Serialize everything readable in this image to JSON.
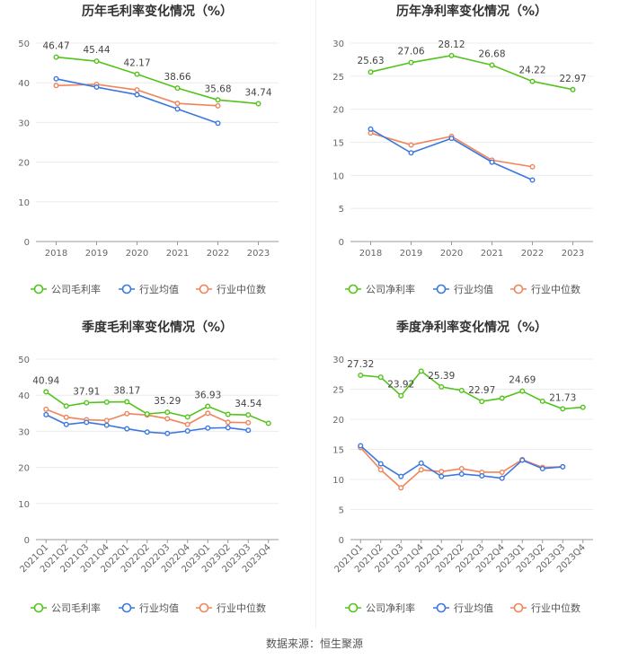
{
  "footer": "数据来源：恒生聚源",
  "chart_data": [
    {
      "type": "line",
      "title": "历年毛利率变化情况（%）",
      "categories": [
        "2018",
        "2019",
        "2020",
        "2021",
        "2022",
        "2023"
      ],
      "ylim": [
        0,
        50
      ],
      "yticks": [
        0,
        10,
        20,
        30,
        40,
        50
      ],
      "rotate_labels": false,
      "series": [
        {
          "name": "公司毛利率",
          "color": "#52c41a",
          "labeled": true,
          "values": [
            46.47,
            45.44,
            42.17,
            38.66,
            35.68,
            34.74
          ],
          "labels": [
            "46.47",
            "45.44",
            "42.17",
            "38.66",
            "35.68",
            "34.74"
          ]
        },
        {
          "name": "行业均值",
          "color": "#3a77e0",
          "labeled": false,
          "values": [
            41.0,
            38.9,
            37.0,
            33.4,
            29.8,
            null
          ]
        },
        {
          "name": "行业中位数",
          "color": "#f0845a",
          "labeled": false,
          "values": [
            39.3,
            39.6,
            38.2,
            34.8,
            34.2,
            null
          ]
        }
      ]
    },
    {
      "type": "line",
      "title": "历年净利率变化情况（%）",
      "categories": [
        "2018",
        "2019",
        "2020",
        "2021",
        "2022",
        "2023"
      ],
      "ylim": [
        0,
        30
      ],
      "yticks": [
        0,
        5,
        10,
        15,
        20,
        25,
        30
      ],
      "rotate_labels": false,
      "series": [
        {
          "name": "公司净利率",
          "color": "#52c41a",
          "labeled": true,
          "values": [
            25.63,
            27.06,
            28.12,
            26.68,
            24.22,
            22.97
          ],
          "labels": [
            "25.63",
            "27.06",
            "28.12",
            "26.68",
            "24.22",
            "22.97"
          ]
        },
        {
          "name": "行业均值",
          "color": "#3a77e0",
          "labeled": false,
          "values": [
            17.0,
            13.4,
            15.6,
            12.0,
            9.3,
            null
          ]
        },
        {
          "name": "行业中位数",
          "color": "#f0845a",
          "labeled": false,
          "values": [
            16.4,
            14.6,
            15.9,
            12.3,
            11.3,
            null
          ]
        }
      ]
    },
    {
      "type": "line",
      "title": "季度毛利率变化情况（%）",
      "categories": [
        "2021Q1",
        "2021Q2",
        "2021Q3",
        "2021Q4",
        "2022Q1",
        "2022Q2",
        "2022Q3",
        "2022Q4",
        "2023Q1",
        "2023Q2",
        "2023Q3",
        "2023Q4"
      ],
      "ylim": [
        0,
        50
      ],
      "yticks": [
        0,
        10,
        20,
        30,
        40,
        50
      ],
      "rotate_labels": true,
      "series": [
        {
          "name": "公司毛利率",
          "color": "#52c41a",
          "labeled": true,
          "values": [
            40.94,
            37.0,
            37.91,
            38.1,
            38.17,
            34.8,
            35.29,
            34.0,
            36.93,
            34.7,
            34.54,
            32.2
          ],
          "labels": [
            "40.94",
            "",
            "37.91",
            "",
            "38.17",
            "",
            "35.29",
            "",
            "36.93",
            "",
            "34.54",
            ""
          ]
        },
        {
          "name": "行业均值",
          "color": "#3a77e0",
          "labeled": false,
          "values": [
            34.6,
            31.9,
            32.5,
            31.7,
            30.7,
            29.8,
            29.4,
            30.1,
            30.9,
            31.0,
            30.3,
            null
          ]
        },
        {
          "name": "行业中位数",
          "color": "#f0845a",
          "labeled": false,
          "values": [
            36.1,
            33.9,
            33.2,
            33.0,
            34.9,
            34.5,
            33.5,
            31.9,
            35.0,
            32.5,
            32.4,
            null
          ]
        }
      ]
    },
    {
      "type": "line",
      "title": "季度净利率变化情况（%）",
      "categories": [
        "2021Q1",
        "2021Q2",
        "2021Q3",
        "2021Q4",
        "2022Q1",
        "2022Q2",
        "2022Q3",
        "2022Q4",
        "2023Q1",
        "2023Q2",
        "2023Q3",
        "2023Q4"
      ],
      "ylim": [
        0,
        30
      ],
      "yticks": [
        0,
        5,
        10,
        15,
        20,
        25,
        30
      ],
      "rotate_labels": true,
      "series": [
        {
          "name": "公司净利率",
          "color": "#52c41a",
          "labeled": true,
          "values": [
            27.32,
            27.0,
            23.92,
            28.0,
            25.39,
            24.8,
            22.97,
            23.5,
            24.69,
            23.0,
            21.73,
            22.0
          ],
          "labels": [
            "27.32",
            "",
            "23.92",
            "",
            "25.39",
            "",
            "22.97",
            "",
            "24.69",
            "",
            "21.73",
            ""
          ]
        },
        {
          "name": "行业均值",
          "color": "#3a77e0",
          "labeled": false,
          "values": [
            15.6,
            12.6,
            10.5,
            12.7,
            10.5,
            10.9,
            10.6,
            10.2,
            13.2,
            11.8,
            12.1,
            null
          ]
        },
        {
          "name": "行业中位数",
          "color": "#f0845a",
          "labeled": false,
          "values": [
            15.3,
            11.6,
            8.6,
            11.6,
            11.3,
            11.8,
            11.2,
            11.2,
            13.3,
            12.0,
            12.1,
            null
          ]
        }
      ]
    }
  ]
}
